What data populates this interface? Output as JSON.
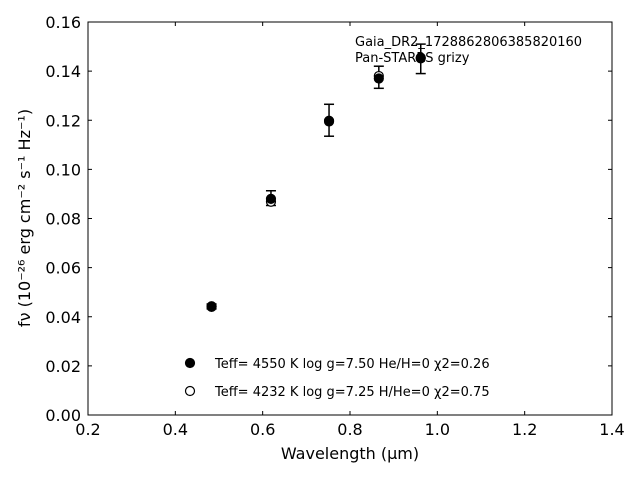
{
  "chart_data": {
    "type": "scatter",
    "xlabel": "Wavelength (μm)",
    "ylabel": "fν (10⁻²⁶ erg cm⁻² s⁻¹ Hz⁻¹)",
    "xlim": [
      0.2,
      1.4
    ],
    "ylim": [
      0.0,
      0.16
    ],
    "x_ticks": [
      "0.2",
      "0.4",
      "0.6",
      "0.8",
      "1.0",
      "1.2",
      "1.4"
    ],
    "y_ticks": [
      "0.00",
      "0.02",
      "0.04",
      "0.06",
      "0.08",
      "0.10",
      "0.12",
      "0.14",
      "0.16"
    ],
    "grid": false,
    "legend_position": "bottom-center",
    "annotations": [
      "Gaia_DR2_1728862806385820160",
      "Pan-STARRS grizy"
    ],
    "observed": {
      "x": [
        0.483,
        0.619,
        0.752,
        0.866,
        0.962
      ],
      "y": [
        0.0442,
        0.0883,
        0.12,
        0.1375,
        0.145
      ],
      "yerr": [
        0.001,
        0.003,
        0.0065,
        0.0045,
        0.006
      ]
    },
    "series": [
      {
        "name": "Teff= 4550 K log g=7.50 He/H=0 χ2=0.26",
        "marker": "filled-circle",
        "color": "#000000",
        "x": [
          0.483,
          0.619,
          0.752,
          0.866,
          0.962
        ],
        "y": [
          0.0443,
          0.088,
          0.1195,
          0.137,
          0.1452
        ]
      },
      {
        "name": "Teff= 4232 K log g=7.25 H/He=0 χ2=0.75",
        "marker": "open-circle",
        "color": "#000000",
        "x": [
          0.483,
          0.619,
          0.752,
          0.866,
          0.962
        ],
        "y": [
          0.044,
          0.0868,
          0.1198,
          0.138,
          0.1455
        ]
      }
    ]
  }
}
